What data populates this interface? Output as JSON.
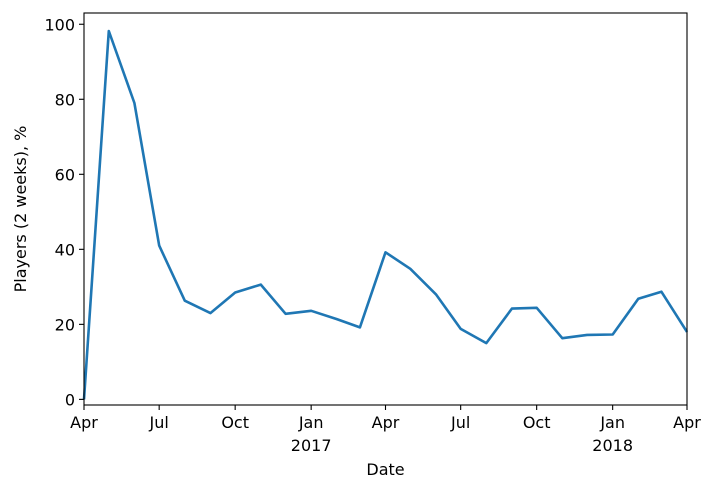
{
  "chart_data": {
    "type": "line",
    "title": "",
    "xlabel": "Date",
    "ylabel": "Players (2 weeks), %",
    "xlim": [
      "2016-04-01",
      "2018-04-01"
    ],
    "ylim": [
      -1.5,
      103
    ],
    "grid": false,
    "legend": "none",
    "colors": {
      "line": "#1f77b4",
      "axes": "#000000",
      "background": "#ffffff"
    },
    "yticks": [
      0,
      20,
      40,
      60,
      80,
      100
    ],
    "xticks": [
      {
        "date": "2016-04-01",
        "label": "Apr",
        "year": ""
      },
      {
        "date": "2016-07-01",
        "label": "Jul",
        "year": ""
      },
      {
        "date": "2016-10-01",
        "label": "Oct",
        "year": ""
      },
      {
        "date": "2017-01-01",
        "label": "Jan",
        "year": "2017"
      },
      {
        "date": "2017-04-01",
        "label": "Apr",
        "year": ""
      },
      {
        "date": "2017-07-01",
        "label": "Jul",
        "year": ""
      },
      {
        "date": "2017-10-01",
        "label": "Oct",
        "year": ""
      },
      {
        "date": "2018-01-01",
        "label": "Jan",
        "year": "2018"
      },
      {
        "date": "2018-04-01",
        "label": "Apr",
        "year": ""
      }
    ],
    "series": [
      {
        "x": [
          "2016-04-01",
          "2016-05-01",
          "2016-06-01",
          "2016-07-01",
          "2016-08-01",
          "2016-09-01",
          "2016-10-01",
          "2016-11-01",
          "2016-12-01",
          "2017-01-01",
          "2017-02-01",
          "2017-03-01",
          "2017-04-01",
          "2017-05-01",
          "2017-06-01",
          "2017-07-01",
          "2017-08-01",
          "2017-09-01",
          "2017-10-01",
          "2017-11-01",
          "2017-12-01",
          "2018-01-01",
          "2018-02-01",
          "2018-03-01",
          "2018-04-01"
        ],
        "values": [
          0,
          98.2,
          79,
          41,
          26.3,
          23,
          28.5,
          30.6,
          22.8,
          23.6,
          21.4,
          19.2,
          39.2,
          34.8,
          28,
          18.8,
          15,
          24.2,
          24.4,
          16.3,
          17.2,
          17.3,
          26.8,
          28.7,
          18
        ]
      }
    ]
  }
}
